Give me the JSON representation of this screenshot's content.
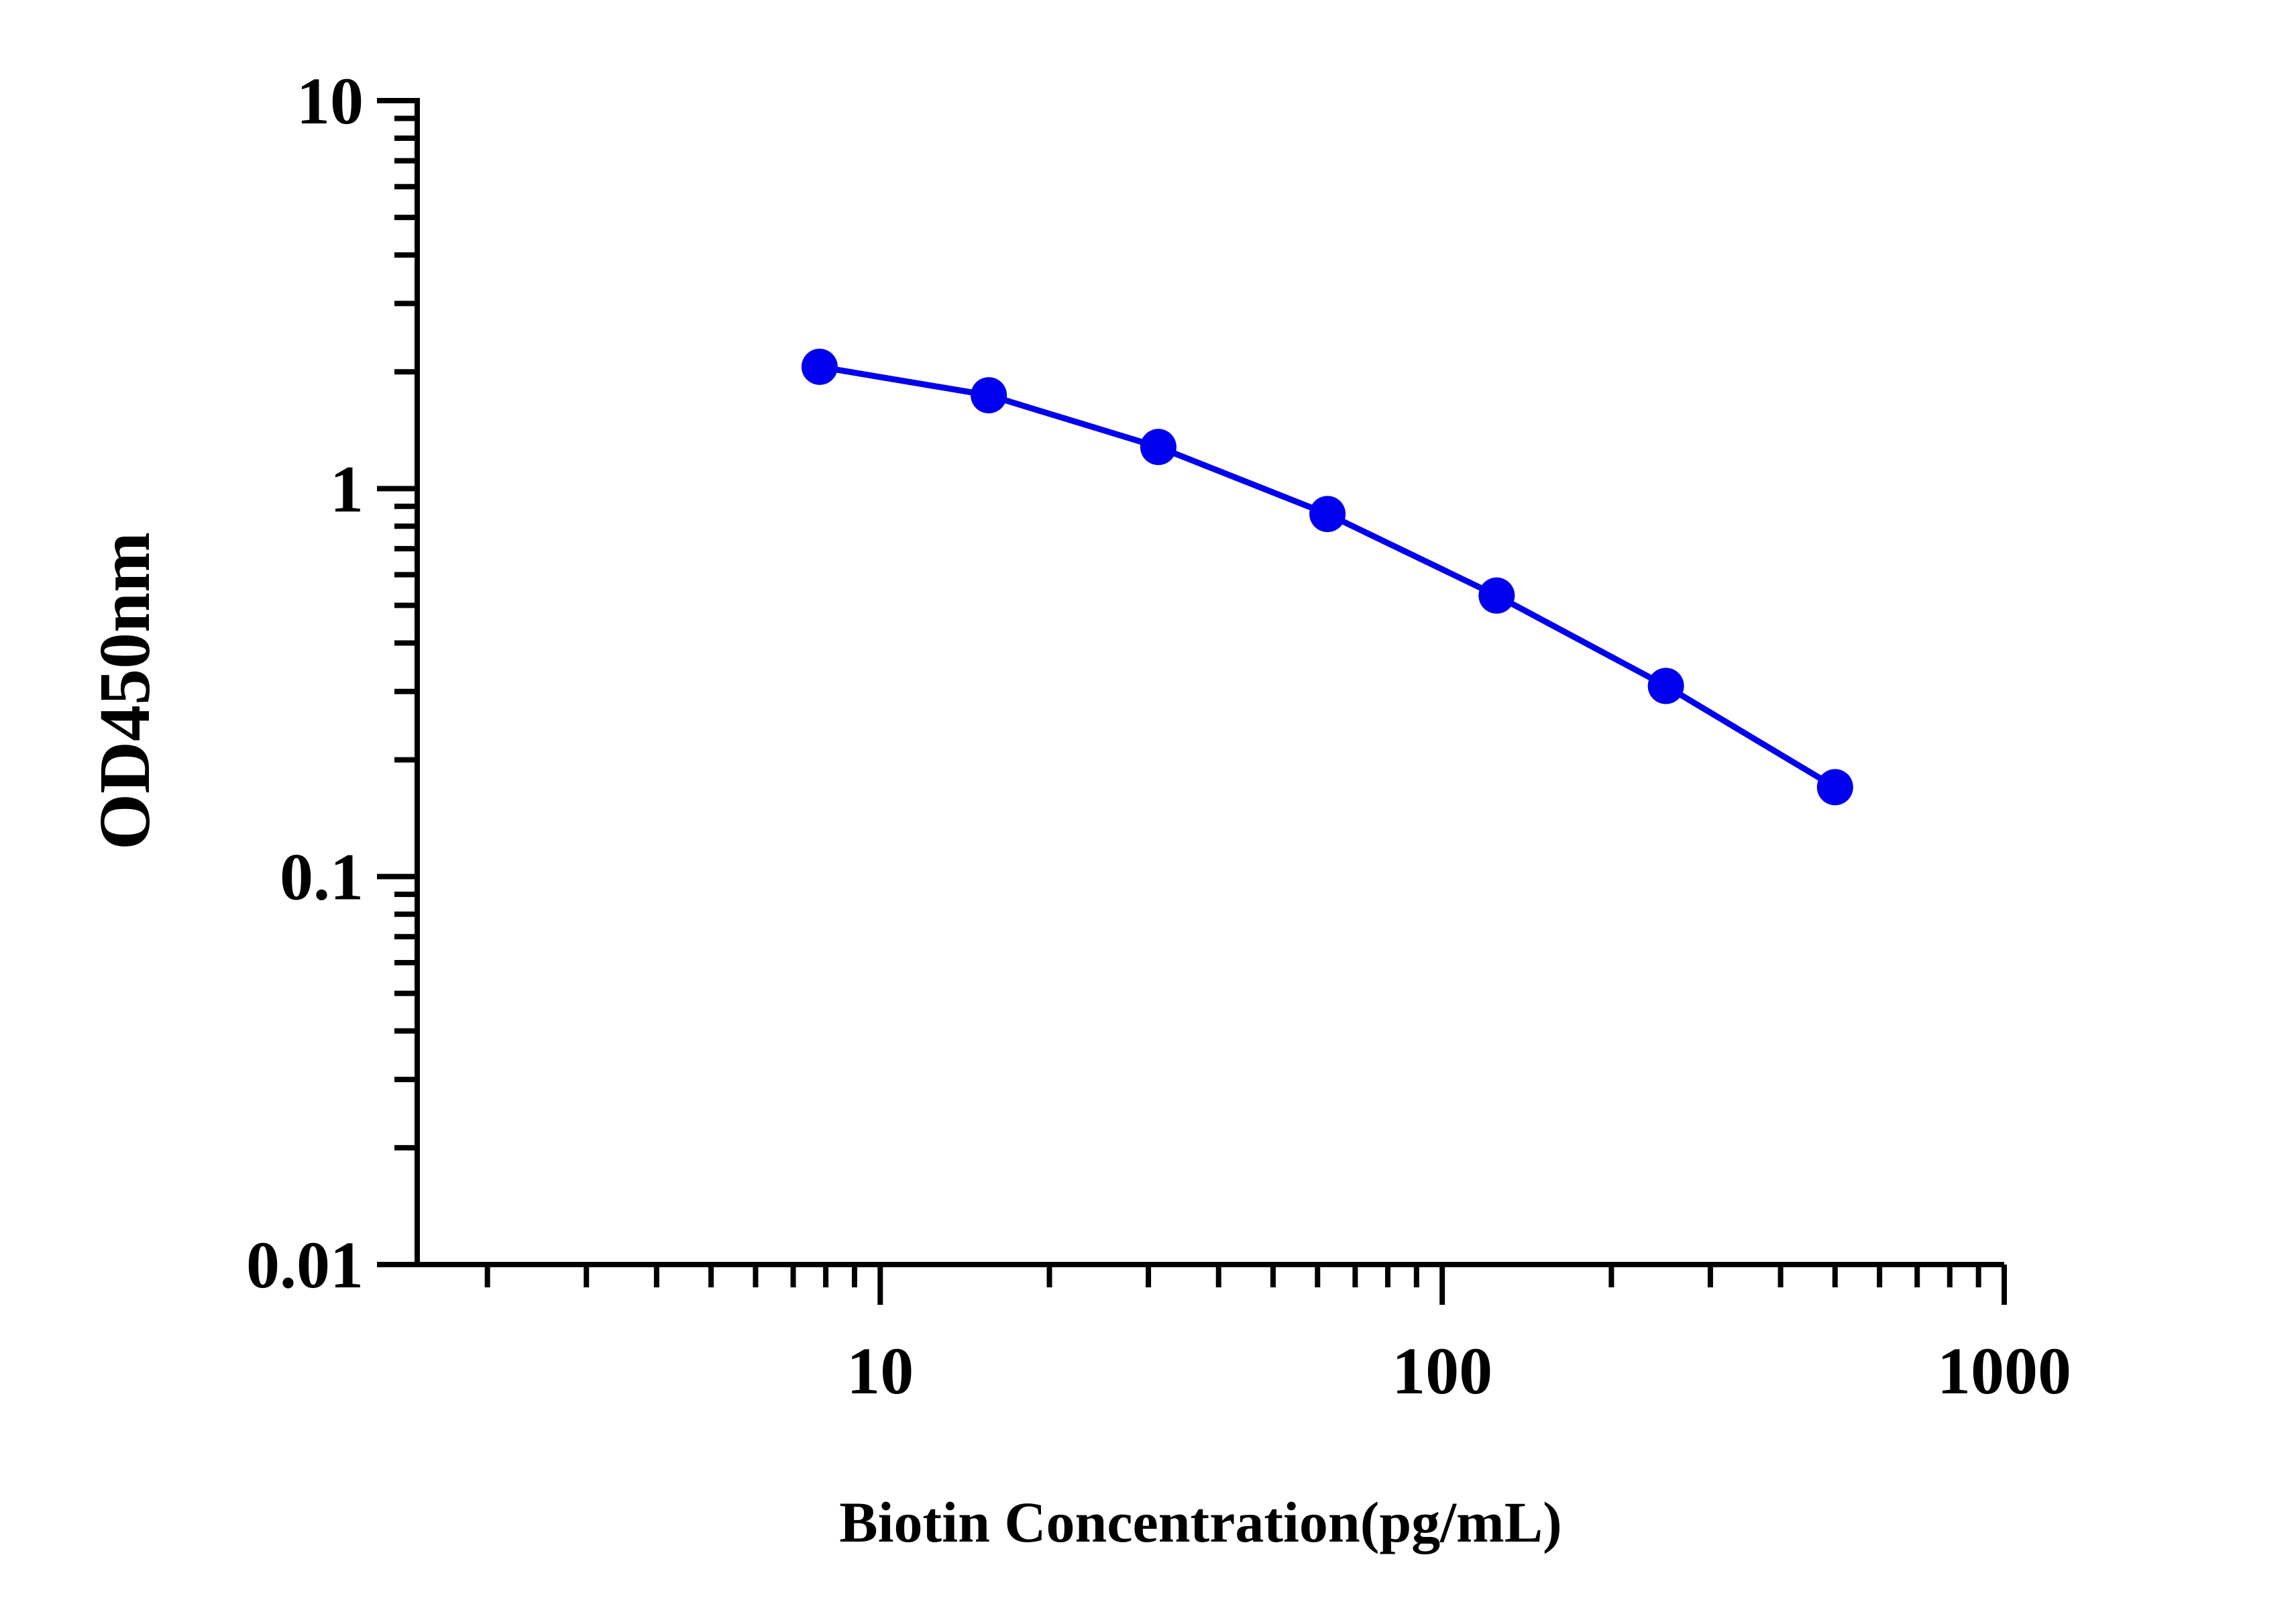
{
  "chart_data": {
    "type": "line",
    "xlabel": "Biotin Concentration(pg/mL)",
    "ylabel": "OD450nm",
    "x_scale": "log",
    "y_scale": "log",
    "xlim": [
      1.5,
      1000
    ],
    "ylim": [
      0.01,
      10
    ],
    "x_ticks": [
      "10",
      "100",
      "1000"
    ],
    "y_ticks": [
      "10",
      "1",
      "0.1",
      "0.01"
    ],
    "grid": false,
    "legend": "none",
    "series": [
      {
        "x": [
          7.8,
          15.6,
          31.25,
          62.5,
          125,
          250,
          500
        ],
        "y": [
          2.06,
          1.74,
          1.28,
          0.86,
          0.53,
          0.31,
          0.17
        ],
        "color": "#0000ee"
      }
    ]
  }
}
